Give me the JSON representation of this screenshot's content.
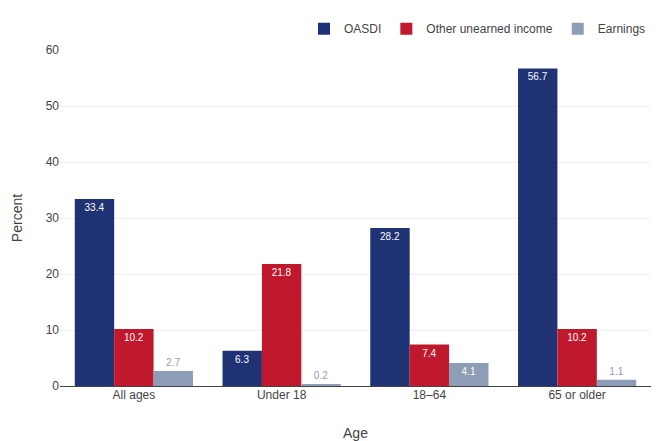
{
  "chart_data": {
    "type": "bar",
    "xlabel": "Age",
    "ylabel": "Percent",
    "categories": [
      "All ages",
      "Under 18",
      "18–64",
      "65 or older"
    ],
    "series": [
      {
        "name": "OASDI",
        "color": "#1f3274",
        "values": [
          33.4,
          6.3,
          28.2,
          56.7
        ]
      },
      {
        "name": "Other unearned income",
        "color": "#c0182c",
        "values": [
          10.2,
          21.8,
          7.4,
          10.2
        ]
      },
      {
        "name": "Earnings",
        "color": "#8c9db5",
        "values": [
          2.7,
          0.2,
          4.1,
          1.1
        ]
      }
    ],
    "ylim": [
      0,
      60
    ],
    "yticks": [
      0,
      10,
      20,
      30,
      40,
      50,
      60
    ],
    "grid": true,
    "legend": "upper right",
    "data_labels": true
  }
}
